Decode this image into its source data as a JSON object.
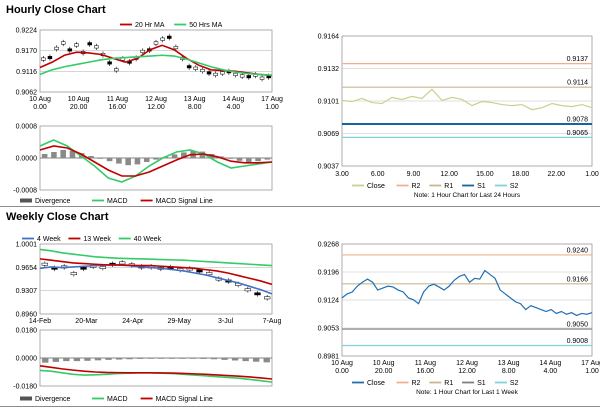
{
  "sections": {
    "hourly_title": "Hourly Close Chart",
    "weekly_title": "Weekly Close Chart"
  },
  "colors": {
    "grid": "#bfbfbf",
    "price_green": "#33cc66",
    "price_red": "#c00000",
    "ma_dark": "#333333",
    "macd_grey": "#8a8a8a",
    "close_olive": "#c8d28a",
    "close_blue": "#1f6fb4",
    "r2_orange": "#f0b090",
    "r1_tan": "#c8b890",
    "s1_navy": "#17639e",
    "s2_teal": "#7fd3d8",
    "wk_blue": "#4472c4"
  },
  "chart_data": [
    {
      "id": "hourly_price",
      "type": "line",
      "legend": [
        "20 Hr MA",
        "50 Hrs MA"
      ],
      "legend_colors": [
        "#c00000",
        "#33cc66"
      ],
      "yticks": [
        "0.9224",
        "0.9170",
        "0.9116",
        "0.9062"
      ],
      "ylim": [
        0.9062,
        0.9224
      ],
      "xticks": [
        [
          "10 Aug",
          "0.00"
        ],
        [
          "10 Aug",
          "20.00"
        ],
        [
          "11 Aug",
          "16.00"
        ],
        [
          "12 Aug",
          "12.00"
        ],
        [
          "13 Aug",
          "8.00"
        ],
        [
          "14 Aug",
          "4.00"
        ],
        [
          "17 Aug",
          "1.00"
        ]
      ],
      "candles": [
        0.9148,
        0.9152,
        0.9176,
        0.919,
        0.9172,
        0.9185,
        0.9165,
        0.9188,
        0.918,
        0.916,
        0.9138,
        0.912,
        0.9148,
        0.914,
        0.915,
        0.9168,
        0.9172,
        0.919,
        0.92,
        0.9205,
        0.9178,
        0.915,
        0.9128,
        0.9124,
        0.9118,
        0.9112,
        0.9108,
        0.9112,
        0.9115,
        0.9108,
        0.9104,
        0.9102,
        0.9106,
        0.9098,
        0.9102
      ],
      "series": [
        {
          "name": "20 Hr MA",
          "values": [
            0.9126,
            0.914,
            0.9158,
            0.9166,
            0.9164,
            0.916,
            0.915,
            0.914,
            0.915,
            0.9172,
            0.9184,
            0.9172,
            0.915,
            0.9132,
            0.912,
            0.9118,
            0.9116,
            0.9112,
            0.9108,
            0.9105
          ]
        },
        {
          "name": "50 Hrs MA",
          "values": [
            0.9108,
            0.912,
            0.9128,
            0.9134,
            0.914,
            0.9146,
            0.915,
            0.9152,
            0.9154,
            0.9156,
            0.9158,
            0.9156,
            0.9148,
            0.9138,
            0.9128,
            0.912,
            0.9114,
            0.911,
            0.9108,
            0.9106
          ]
        }
      ]
    },
    {
      "id": "hourly_macd",
      "type": "bar",
      "legend": [
        "Divergence",
        "MACD",
        "MACD Signal Line"
      ],
      "legend_colors": [
        "#555555",
        "#33cc66",
        "#c00000"
      ],
      "yticks": [
        "0.0008",
        "0.0000",
        "-0.0008"
      ],
      "ylim": [
        -0.0008,
        0.0008
      ],
      "divergence": [
        0.0001,
        0.00015,
        0.0002,
        0.00018,
        0.00012,
        5e-05,
        -2e-05,
        -8e-05,
        -0.00014,
        -0.00018,
        -0.00016,
        -0.0001,
        -4e-05,
        3e-05,
        9e-05,
        0.00014,
        0.00018,
        0.00016,
        0.0001,
        4e-05,
        -2e-05,
        -7e-05,
        -0.0001,
        -8e-05,
        -4e-05
      ],
      "series": [
        {
          "name": "MACD",
          "values": [
            0.0003,
            0.00045,
            0.0003,
            5e-05,
            -0.0002,
            -0.0005,
            -0.0006,
            -0.00045,
            -0.0002,
            0.0,
            0.00015,
            0.0002,
            0.0001,
            -0.0001,
            -0.00025,
            -0.0002,
            -0.00015,
            -0.0001
          ]
        },
        {
          "name": "MACD Signal Line",
          "values": [
            0.0002,
            0.0003,
            0.00025,
            0.0001,
            -0.0001,
            -0.0003,
            -0.00045,
            -0.00045,
            -0.00035,
            -0.0002,
            -5e-05,
            8e-05,
            0.0001,
            3e-05,
            -8e-05,
            -0.00012,
            -0.00012,
            -0.0001
          ]
        }
      ]
    },
    {
      "id": "hourly_pivot",
      "type": "line",
      "legend": [
        "Close",
        "R2",
        "R1",
        "S1",
        "S2"
      ],
      "legend_colors": [
        "#c8d28a",
        "#f0b090",
        "#c8b890",
        "#17639e",
        "#7fd3d8"
      ],
      "note": "Note: 1 Hour Chart for Last 24 Hours",
      "yticks": [
        "0.9164",
        "0.9132",
        "0.9101",
        "0.9069",
        "0.9037"
      ],
      "ylim": [
        0.9037,
        0.9164
      ],
      "xticks": [
        "3.00",
        "6.00",
        "9.00",
        "12.00",
        "15.00",
        "18.00",
        "22.00",
        "1.00"
      ],
      "levels": [
        {
          "name": "R2",
          "value": 0.9137,
          "label": "0.9137"
        },
        {
          "name": "R1",
          "value": 0.9114,
          "label": "0.9114"
        },
        {
          "name": "S1",
          "value": 0.9078,
          "label": "0.9078"
        },
        {
          "name": "S2",
          "value": 0.9065,
          "label": "0.9065"
        }
      ],
      "close": [
        0.9101,
        0.91,
        0.9103,
        0.9099,
        0.9098,
        0.9104,
        0.9102,
        0.9105,
        0.9103,
        0.9112,
        0.9101,
        0.9104,
        0.9102,
        0.9096,
        0.91,
        0.9099,
        0.9097,
        0.9096,
        0.9097,
        0.9092,
        0.9094,
        0.9098,
        0.9096,
        0.9095,
        0.9097,
        0.9094
      ]
    },
    {
      "id": "weekly_price",
      "type": "line",
      "legend": [
        "4 Week",
        "13 Week",
        "40 Week"
      ],
      "legend_colors": [
        "#4472c4",
        "#c00000",
        "#33cc66"
      ],
      "yticks": [
        "1.0001",
        "0.9654",
        "0.9307",
        "0.8960"
      ],
      "ylim": [
        0.896,
        1.0001
      ],
      "xticks": [
        "14-Feb",
        "20-Mar",
        "24-Apr",
        "29-May",
        "3-Jul",
        "7-Aug"
      ],
      "candles": [
        0.97,
        0.964,
        0.966,
        0.956,
        0.964,
        0.967,
        0.965,
        0.97,
        0.972,
        0.969,
        0.966,
        0.966,
        0.964,
        0.965,
        0.962,
        0.963,
        0.96,
        0.956,
        0.948,
        0.945,
        0.94,
        0.932,
        0.926,
        0.92
      ],
      "series": [
        {
          "name": "4 Week",
          "values": [
            0.964,
            0.966,
            0.965,
            0.966,
            0.967,
            0.968,
            0.969,
            0.969,
            0.968,
            0.966,
            0.965,
            0.964,
            0.962,
            0.96,
            0.957,
            0.954,
            0.95,
            0.946,
            0.942,
            0.937,
            0.932,
            0.926
          ]
        },
        {
          "name": "13 Week",
          "values": [
            0.978,
            0.976,
            0.974,
            0.972,
            0.971,
            0.97,
            0.969,
            0.969,
            0.9685,
            0.968,
            0.968,
            0.967,
            0.966,
            0.965,
            0.964,
            0.962,
            0.96,
            0.957,
            0.953,
            0.949,
            0.945,
            0.94
          ]
        },
        {
          "name": "40 Week",
          "values": [
            0.992,
            0.99,
            0.987,
            0.985,
            0.983,
            0.981,
            0.98,
            0.979,
            0.9785,
            0.978,
            0.9775,
            0.977,
            0.9765,
            0.976,
            0.975,
            0.974,
            0.973,
            0.972,
            0.971,
            0.97,
            0.969,
            0.968
          ]
        }
      ]
    },
    {
      "id": "weekly_macd",
      "type": "bar",
      "legend": [
        "Divergence",
        "MACD",
        "MACD Signal Line"
      ],
      "legend_colors": [
        "#555555",
        "#33cc66",
        "#c00000"
      ],
      "yticks": [
        "0.0180",
        "0.0000",
        "-0.0180"
      ],
      "ylim": [
        -0.018,
        0.018
      ],
      "divergence": [
        -0.003,
        -0.0025,
        -0.002,
        -0.002,
        -0.0018,
        -0.0015,
        -0.0012,
        -0.001,
        -0.0008,
        -0.0006,
        -0.0005,
        -0.0004,
        -0.0003,
        -0.0004,
        -0.0005,
        -0.0006,
        -0.0008,
        -0.0012,
        -0.0016,
        -0.002,
        -0.0024,
        -0.0028
      ],
      "series": [
        {
          "name": "MACD",
          "values": [
            -0.008,
            -0.0085,
            -0.0095,
            -0.0105,
            -0.011,
            -0.0108,
            -0.0105,
            -0.01,
            -0.0098,
            -0.0095,
            -0.0095,
            -0.0098,
            -0.01,
            -0.0105,
            -0.011,
            -0.0115,
            -0.012,
            -0.0125,
            -0.013,
            -0.0138,
            -0.0146,
            -0.0155
          ]
        },
        {
          "name": "MACD Signal Line",
          "values": [
            -0.005,
            -0.006,
            -0.007,
            -0.0078,
            -0.0085,
            -0.009,
            -0.0093,
            -0.0094,
            -0.0095,
            -0.0095,
            -0.0095,
            -0.0096,
            -0.0097,
            -0.0099,
            -0.0102,
            -0.0105,
            -0.0109,
            -0.0113,
            -0.0117,
            -0.0122,
            -0.0128,
            -0.0135
          ]
        }
      ]
    },
    {
      "id": "weekly_pivot",
      "type": "line",
      "legend": [
        "Close",
        "R2",
        "R1",
        "S1",
        "S2"
      ],
      "legend_colors": [
        "#1f6fb4",
        "#f0b090",
        "#c8b890",
        "#7f7f7f",
        "#7fd3d8"
      ],
      "note": "Note: 1 Hour Chart for Last 1 Week",
      "yticks": [
        "0.9268",
        "0.9196",
        "0.9124",
        "0.9053",
        "0.8981"
      ],
      "ylim": [
        0.8981,
        0.9268
      ],
      "xticks": [
        [
          "10 Aug",
          "0.00"
        ],
        [
          "10 Aug",
          "20.00"
        ],
        [
          "11 Aug",
          "16.00"
        ],
        [
          "12 Aug",
          "12.00"
        ],
        [
          "13 Aug",
          "8.00"
        ],
        [
          "14 Aug",
          "4.00"
        ],
        [
          "17 Aug",
          "1.00"
        ]
      ],
      "levels": [
        {
          "name": "R2",
          "value": 0.924,
          "label": "0.9240"
        },
        {
          "name": "R1",
          "value": 0.9166,
          "label": "0.9166"
        },
        {
          "name": "S1",
          "value": 0.905,
          "label": "0.9050"
        },
        {
          "name": "S2",
          "value": 0.9008,
          "label": "0.9008"
        }
      ],
      "close": [
        0.913,
        0.914,
        0.9145,
        0.916,
        0.917,
        0.9178,
        0.917,
        0.915,
        0.9155,
        0.916,
        0.9158,
        0.915,
        0.9145,
        0.913,
        0.9125,
        0.9115,
        0.9145,
        0.916,
        0.9165,
        0.9158,
        0.915,
        0.916,
        0.9175,
        0.9185,
        0.919,
        0.917,
        0.918,
        0.9178,
        0.92,
        0.919,
        0.918,
        0.915,
        0.914,
        0.913,
        0.912,
        0.9115,
        0.91,
        0.911,
        0.9105,
        0.91,
        0.9095,
        0.91,
        0.909,
        0.9095,
        0.9088,
        0.9092,
        0.9085,
        0.909,
        0.9088,
        0.9092
      ]
    }
  ]
}
